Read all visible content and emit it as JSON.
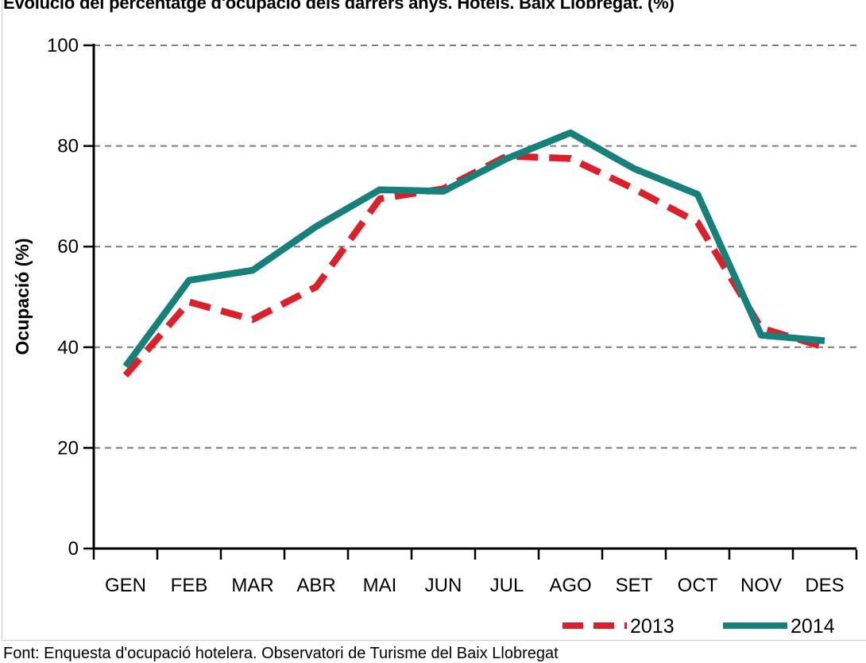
{
  "title": "Evolució del percentatge d'ocupació dels darrers anys. Hotels. Baix Llobregat. (%)",
  "footer": "Font: Enquesta d'ocupació hotelera. Observatori de Turisme del Baix Llobregat",
  "chart_data": {
    "type": "line",
    "title": "Evolució del percentatge d'ocupació dels darrers anys. Hotels. Baix Llobregat. (%)",
    "xlabel": "",
    "ylabel": "Ocupació (%)",
    "categories": [
      "GEN",
      "FEB",
      "MAR",
      "ABR",
      "MAI",
      "JUN",
      "JUL",
      "AGO",
      "SET",
      "OCT",
      "NOV",
      "DES"
    ],
    "yticks": [
      0,
      20,
      40,
      60,
      80,
      100
    ],
    "ylim": [
      0,
      100
    ],
    "grid": "horizontal-dashed",
    "legend_position": "bottom-right",
    "series": [
      {
        "name": "2013",
        "color": "#dc1f28",
        "style": "dashed",
        "values": [
          34.4,
          49.0,
          45.5,
          52.0,
          69.5,
          71.5,
          78.0,
          77.5,
          71.5,
          64.8,
          43.8,
          40.0
        ]
      },
      {
        "name": "2014",
        "color": "#16807a",
        "style": "solid",
        "values": [
          36.2,
          53.3,
          55.3,
          64.0,
          71.3,
          71.0,
          77.5,
          82.6,
          75.5,
          70.4,
          42.4,
          41.3
        ]
      }
    ]
  },
  "colors": {
    "axis": "#000000",
    "gridline": "#7d7d7d",
    "frame": "#c9c9c9",
    "background": "#ffffff",
    "series_2013": "#dc1f28",
    "series_2014": "#16807a"
  }
}
